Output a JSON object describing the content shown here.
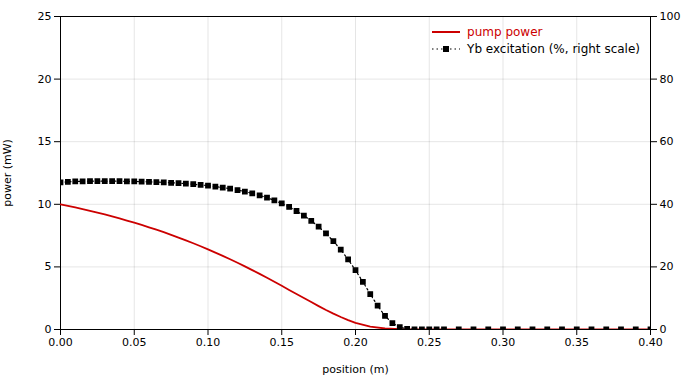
{
  "chart_data": {
    "type": "line",
    "xlabel": "position (m)",
    "ylabel": "power (mW)",
    "xlim": [
      0,
      0.4
    ],
    "xticks": [
      {
        "value": 0,
        "label": "0.00"
      },
      0.05,
      {
        "value": 0.1,
        "label": "0.10"
      },
      0.15,
      {
        "value": 0.2,
        "label": "0.20"
      },
      0.25,
      {
        "value": 0.3,
        "label": "0.30"
      },
      0.35,
      {
        "value": 0.4,
        "label": "0.40"
      }
    ],
    "ylim": [
      0,
      25
    ],
    "yticks": [
      0,
      5,
      10,
      15,
      20,
      25
    ],
    "y2lim": [
      0,
      100
    ],
    "y2ticks": [
      0,
      20,
      40,
      60,
      80,
      100
    ],
    "grid": true,
    "legend": "upper right",
    "series": [
      {
        "name": "pump power",
        "color": "#cc0000",
        "line_style": "solid",
        "x": [
          0.0,
          0.005,
          0.01,
          0.015,
          0.02,
          0.025,
          0.03,
          0.035,
          0.04,
          0.045,
          0.05,
          0.055,
          0.06,
          0.065,
          0.07,
          0.075,
          0.08,
          0.085,
          0.09,
          0.095,
          0.1,
          0.105,
          0.11,
          0.115,
          0.12,
          0.125,
          0.13,
          0.135,
          0.14,
          0.145,
          0.15,
          0.155,
          0.16,
          0.165,
          0.17,
          0.175,
          0.18,
          0.185,
          0.19,
          0.195,
          0.2,
          0.21,
          0.22,
          0.23,
          0.24,
          0.25,
          0.26,
          0.27,
          0.28,
          0.29,
          0.3,
          0.32,
          0.34,
          0.36,
          0.38,
          0.4
        ],
        "values": [
          10.0,
          9.88,
          9.75,
          9.62,
          9.48,
          9.34,
          9.19,
          9.03,
          8.87,
          8.7,
          8.53,
          8.35,
          8.16,
          7.97,
          7.77,
          7.56,
          7.34,
          7.12,
          6.89,
          6.65,
          6.4,
          6.14,
          5.88,
          5.61,
          5.33,
          5.04,
          4.74,
          4.44,
          4.13,
          3.81,
          3.49,
          3.16,
          2.84,
          2.51,
          2.19,
          1.87,
          1.56,
          1.27,
          1.0,
          0.75,
          0.53,
          0.23,
          0.08,
          0.02,
          0.004,
          0.001,
          0.0,
          0.0,
          0.0,
          0.0,
          0.0,
          0.0,
          0.0,
          0.0,
          0.0,
          0.0
        ]
      },
      {
        "name": "Yb excitation (%, right scale)",
        "color": "#000000",
        "axis": "y2",
        "marker": "square",
        "line_style": "dotted",
        "x": [
          0.0,
          0.005,
          0.01,
          0.015,
          0.02,
          0.025,
          0.03,
          0.035,
          0.04,
          0.045,
          0.05,
          0.055,
          0.06,
          0.065,
          0.07,
          0.075,
          0.08,
          0.085,
          0.09,
          0.095,
          0.1,
          0.105,
          0.11,
          0.115,
          0.12,
          0.125,
          0.13,
          0.135,
          0.14,
          0.145,
          0.15,
          0.155,
          0.16,
          0.165,
          0.17,
          0.175,
          0.18,
          0.185,
          0.19,
          0.195,
          0.2,
          0.205,
          0.21,
          0.215,
          0.22,
          0.225,
          0.23,
          0.235,
          0.24,
          0.245,
          0.25,
          0.255,
          0.26,
          0.27,
          0.28,
          0.29,
          0.3,
          0.31,
          0.32,
          0.33,
          0.34,
          0.35,
          0.36,
          0.37,
          0.38,
          0.39,
          0.4
        ],
        "values": [
          47.0,
          47.2,
          47.3,
          47.35,
          47.38,
          47.4,
          47.4,
          47.4,
          47.38,
          47.35,
          47.3,
          47.25,
          47.18,
          47.1,
          47.0,
          46.88,
          46.75,
          46.6,
          46.42,
          46.2,
          45.96,
          45.68,
          45.36,
          44.98,
          44.56,
          44.06,
          43.5,
          42.85,
          42.1,
          41.24,
          40.26,
          39.14,
          37.86,
          36.4,
          34.74,
          32.84,
          30.68,
          28.24,
          25.48,
          22.38,
          18.94,
          15.22,
          11.34,
          7.6,
          4.34,
          2.04,
          0.74,
          0.2,
          0.045,
          0.008,
          0.001,
          0.0,
          0.0,
          0.0,
          0.0,
          0.0,
          0.0,
          0.0,
          0.0,
          0.0,
          0.0,
          0.0,
          0.0,
          0.0,
          0.0,
          0.0,
          0.0
        ]
      }
    ]
  }
}
